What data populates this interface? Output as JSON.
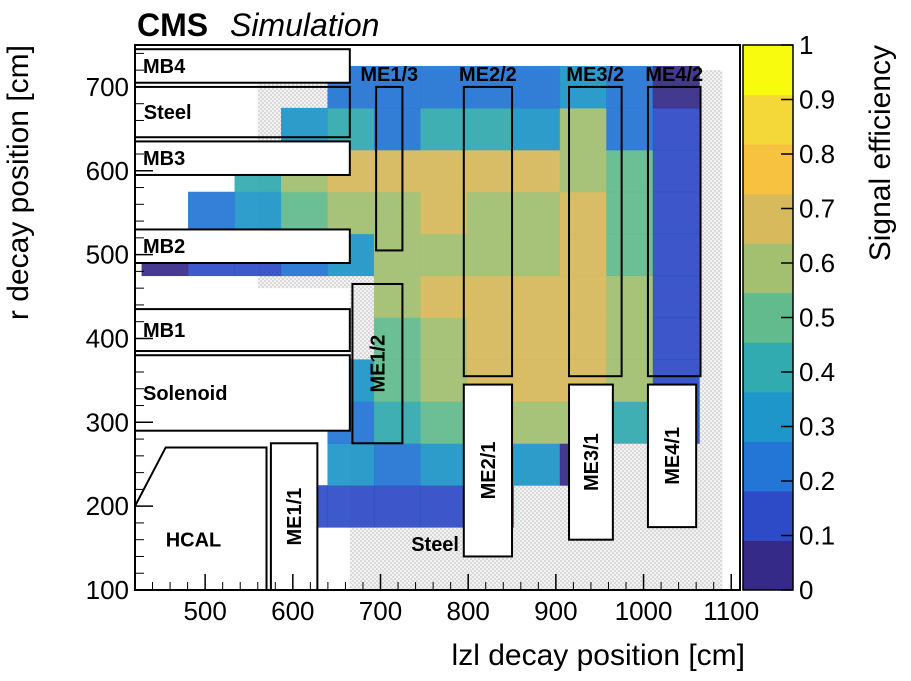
{
  "header": {
    "experiment": "CMS",
    "qualifier": "Simulation"
  },
  "chart_data": {
    "type": "heatmap",
    "xlabel": "lzl decay position [cm]",
    "ylabel": "r decay position [cm]",
    "zlabel": "Signal efficiency",
    "xlim": [
      420,
      1110
    ],
    "ylim": [
      100,
      750
    ],
    "zlim": [
      0,
      1
    ],
    "x_ticks": [
      "500",
      "600",
      "700",
      "800",
      "900",
      "1000",
      "1100"
    ],
    "y_ticks": [
      "100",
      "200",
      "300",
      "400",
      "500",
      "600",
      "700"
    ],
    "z_ticks": [
      "0",
      "0.1",
      "0.2",
      "0.3",
      "0.4",
      "0.5",
      "0.6",
      "0.7",
      "0.8",
      "0.9",
      "1"
    ],
    "colormap": [
      "#352a87",
      "#2e4bc7",
      "#2375d6",
      "#1e96c9",
      "#31aab0",
      "#62bb8d",
      "#a2c070",
      "#d7ba5b",
      "#f6c240",
      "#f4d83a",
      "#f9fb0e"
    ],
    "cell_width": 53,
    "cell_height": 50,
    "cells": [
      {
        "x": 613,
        "y": 200,
        "z": 0.13
      },
      {
        "x": 666,
        "y": 200,
        "z": 0.12
      },
      {
        "x": 719,
        "y": 200,
        "z": 0.12
      },
      {
        "x": 772,
        "y": 200,
        "z": 0.11
      },
      {
        "x": 825,
        "y": 200,
        "z": 0.12
      },
      {
        "x": 666,
        "y": 250,
        "z": 0.3
      },
      {
        "x": 719,
        "y": 250,
        "z": 0.25
      },
      {
        "x": 772,
        "y": 250,
        "z": 0.3
      },
      {
        "x": 825,
        "y": 250,
        "z": 0.32
      },
      {
        "x": 878,
        "y": 250,
        "z": 0.38
      },
      {
        "x": 931,
        "y": 250,
        "z": 0.08
      },
      {
        "x": 666,
        "y": 300,
        "z": 0.2
      },
      {
        "x": 719,
        "y": 300,
        "z": 0.4
      },
      {
        "x": 772,
        "y": 300,
        "z": 0.55
      },
      {
        "x": 825,
        "y": 300,
        "z": 0.62
      },
      {
        "x": 878,
        "y": 300,
        "z": 0.62
      },
      {
        "x": 931,
        "y": 300,
        "z": 0.6
      },
      {
        "x": 984,
        "y": 300,
        "z": 0.42
      },
      {
        "x": 1037,
        "y": 300,
        "z": 0.12
      },
      {
        "x": 666,
        "y": 350,
        "z": 0.35
      },
      {
        "x": 719,
        "y": 350,
        "z": 0.5
      },
      {
        "x": 772,
        "y": 350,
        "z": 0.65
      },
      {
        "x": 825,
        "y": 350,
        "z": 0.72
      },
      {
        "x": 878,
        "y": 350,
        "z": 0.75
      },
      {
        "x": 931,
        "y": 350,
        "z": 0.75
      },
      {
        "x": 984,
        "y": 350,
        "z": 0.6
      },
      {
        "x": 1037,
        "y": 350,
        "z": 0.18
      },
      {
        "x": 719,
        "y": 400,
        "z": 0.55
      },
      {
        "x": 772,
        "y": 400,
        "z": 0.68
      },
      {
        "x": 825,
        "y": 400,
        "z": 0.76
      },
      {
        "x": 878,
        "y": 400,
        "z": 0.78
      },
      {
        "x": 931,
        "y": 400,
        "z": 0.78
      },
      {
        "x": 984,
        "y": 400,
        "z": 0.65
      },
      {
        "x": 1037,
        "y": 400,
        "z": 0.15
      },
      {
        "x": 719,
        "y": 450,
        "z": 0.62
      },
      {
        "x": 772,
        "y": 450,
        "z": 0.7
      },
      {
        "x": 825,
        "y": 450,
        "z": 0.76
      },
      {
        "x": 878,
        "y": 450,
        "z": 0.75
      },
      {
        "x": 931,
        "y": 450,
        "z": 0.78
      },
      {
        "x": 984,
        "y": 450,
        "z": 0.6
      },
      {
        "x": 1037,
        "y": 450,
        "z": 0.12
      },
      {
        "x": 454,
        "y": 500,
        "z": 0.02
      },
      {
        "x": 507,
        "y": 500,
        "z": 0.14
      },
      {
        "x": 560,
        "y": 500,
        "z": 0.18
      },
      {
        "x": 613,
        "y": 500,
        "z": 0.28
      },
      {
        "x": 666,
        "y": 500,
        "z": 0.32
      },
      {
        "x": 719,
        "y": 500,
        "z": 0.6
      },
      {
        "x": 772,
        "y": 500,
        "z": 0.68
      },
      {
        "x": 825,
        "y": 500,
        "z": 0.65
      },
      {
        "x": 878,
        "y": 500,
        "z": 0.66
      },
      {
        "x": 931,
        "y": 500,
        "z": 0.78
      },
      {
        "x": 984,
        "y": 500,
        "z": 0.55
      },
      {
        "x": 1037,
        "y": 500,
        "z": 0.12
      },
      {
        "x": 507,
        "y": 550,
        "z": 0.25
      },
      {
        "x": 560,
        "y": 550,
        "z": 0.35
      },
      {
        "x": 613,
        "y": 550,
        "z": 0.55
      },
      {
        "x": 666,
        "y": 550,
        "z": 0.65
      },
      {
        "x": 719,
        "y": 550,
        "z": 0.68
      },
      {
        "x": 772,
        "y": 550,
        "z": 0.72
      },
      {
        "x": 825,
        "y": 550,
        "z": 0.68
      },
      {
        "x": 878,
        "y": 550,
        "z": 0.6
      },
      {
        "x": 931,
        "y": 550,
        "z": 0.75
      },
      {
        "x": 984,
        "y": 550,
        "z": 0.55
      },
      {
        "x": 1037,
        "y": 550,
        "z": 0.15
      },
      {
        "x": 560,
        "y": 600,
        "z": 0.4
      },
      {
        "x": 613,
        "y": 600,
        "z": 0.6
      },
      {
        "x": 666,
        "y": 600,
        "z": 0.7
      },
      {
        "x": 719,
        "y": 600,
        "z": 0.72
      },
      {
        "x": 772,
        "y": 600,
        "z": 0.75
      },
      {
        "x": 825,
        "y": 600,
        "z": 0.72
      },
      {
        "x": 878,
        "y": 600,
        "z": 0.75
      },
      {
        "x": 931,
        "y": 600,
        "z": 0.68
      },
      {
        "x": 984,
        "y": 600,
        "z": 0.55
      },
      {
        "x": 1037,
        "y": 600,
        "z": 0.14
      },
      {
        "x": 613,
        "y": 650,
        "z": 0.3
      },
      {
        "x": 666,
        "y": 650,
        "z": 0.45
      },
      {
        "x": 719,
        "y": 650,
        "z": 0.25
      },
      {
        "x": 772,
        "y": 650,
        "z": 0.4
      },
      {
        "x": 825,
        "y": 650,
        "z": 0.45
      },
      {
        "x": 878,
        "y": 650,
        "z": 0.38
      },
      {
        "x": 931,
        "y": 650,
        "z": 0.62
      },
      {
        "x": 984,
        "y": 650,
        "z": 0.28
      },
      {
        "x": 1037,
        "y": 650,
        "z": 0.14
      },
      {
        "x": 666,
        "y": 700,
        "z": 0.22
      },
      {
        "x": 719,
        "y": 700,
        "z": 0.2
      },
      {
        "x": 772,
        "y": 700,
        "z": 0.2
      },
      {
        "x": 825,
        "y": 700,
        "z": 0.2
      },
      {
        "x": 878,
        "y": 700,
        "z": 0.28
      },
      {
        "x": 931,
        "y": 700,
        "z": 0.3
      },
      {
        "x": 984,
        "y": 700,
        "z": 0.25
      },
      {
        "x": 1037,
        "y": 700,
        "z": 0.05
      }
    ],
    "hatched_regions": [
      {
        "x0": 420,
        "x1": 1090,
        "y0": 100,
        "y1": 720
      }
    ],
    "white_regions": [
      {
        "x0": 420,
        "x1": 665,
        "y0": 100,
        "y1": 460
      },
      {
        "x0": 420,
        "x1": 560,
        "y0": 450,
        "y1": 720
      }
    ],
    "detector_boxes": [
      {
        "label": "MB4",
        "x0": 420,
        "x1": 665,
        "y0": 705,
        "y1": 745,
        "label_pos": "inside-left"
      },
      {
        "label": "Steel",
        "x0": 420,
        "x1": 665,
        "y0": 640,
        "y1": 700,
        "label_pos": "none"
      },
      {
        "label": "MB3",
        "x0": 420,
        "x1": 665,
        "y0": 595,
        "y1": 635,
        "label_pos": "inside-left"
      },
      {
        "label": "MB2",
        "x0": 420,
        "x1": 665,
        "y0": 490,
        "y1": 530,
        "label_pos": "inside-left"
      },
      {
        "label": "MB1",
        "x0": 420,
        "x1": 665,
        "y0": 385,
        "y1": 435,
        "label_pos": "inside-left"
      },
      {
        "label": "Solenoid",
        "x0": 420,
        "x1": 665,
        "y0": 290,
        "y1": 380,
        "label_pos": "inside-left"
      },
      {
        "label": "ME1/3",
        "x0": 695,
        "x1": 725,
        "y0": 505,
        "y1": 700,
        "label_pos": "above"
      },
      {
        "label": "ME2/2",
        "x0": 795,
        "x1": 850,
        "y0": 355,
        "y1": 700,
        "label_pos": "above"
      },
      {
        "label": "ME3/2",
        "x0": 915,
        "x1": 975,
        "y0": 355,
        "y1": 700,
        "label_pos": "above"
      },
      {
        "label": "ME4/2",
        "x0": 1005,
        "x1": 1065,
        "y0": 355,
        "y1": 700,
        "label_pos": "above"
      },
      {
        "label": "ME1/2",
        "x0": 668,
        "x1": 725,
        "y0": 275,
        "y1": 465,
        "label_pos": "vertical"
      },
      {
        "label": "ME2/1",
        "x0": 795,
        "x1": 850,
        "y0": 140,
        "y1": 345,
        "label_pos": "vertical"
      },
      {
        "label": "ME3/1",
        "x0": 915,
        "x1": 965,
        "y0": 160,
        "y1": 345,
        "label_pos": "vertical"
      },
      {
        "label": "ME4/1",
        "x0": 1005,
        "x1": 1060,
        "y0": 175,
        "y1": 345,
        "label_pos": "vertical"
      },
      {
        "label": "ME1/1",
        "x0": 575,
        "x1": 628,
        "y0": 100,
        "y1": 275,
        "label_pos": "vertical"
      }
    ],
    "extra_labels": [
      {
        "text": "Steel",
        "x": 430,
        "y": 670
      },
      {
        "text": "HCAL",
        "x": 455,
        "y": 160
      },
      {
        "text": "Steel",
        "x": 735,
        "y": 155
      }
    ]
  }
}
